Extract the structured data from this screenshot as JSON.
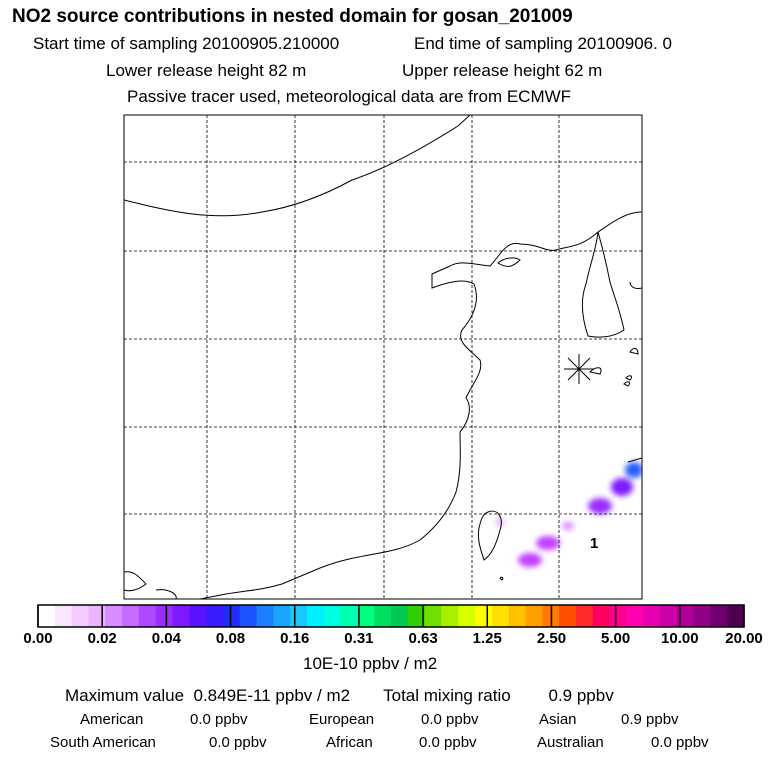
{
  "header": {
    "title": "NO2 source contributions in nested domain for gosan_201009",
    "start_time": "Start time of sampling 20100905.210000",
    "end_time": "End time of sampling 20100906.     0",
    "lower_height": "Lower release height   82 m",
    "upper_height": "Upper release height   62 m",
    "tracer_info": "Passive tracer used, meteorological data are from ECMWF"
  },
  "map": {
    "receptor_label": "1",
    "colors": {
      "coastline": "#000000",
      "grid": "#000000",
      "plume_magenta": "#c040ff",
      "plume_violet": "#8a2be2",
      "plume_blue": "#2a5cff"
    }
  },
  "colorbar": {
    "ticks": [
      "0.00",
      "0.02",
      "0.04",
      "0.08",
      "0.16",
      "0.31",
      "0.63",
      "1.25",
      "2.50",
      "5.00",
      "10.00",
      "20.00"
    ],
    "colors": [
      "#ffffff",
      "#fbe6ff",
      "#f4ccff",
      "#eab3ff",
      "#d98cff",
      "#c56bff",
      "#b04aff",
      "#9a2eff",
      "#7d1aff",
      "#5a12ff",
      "#3a1aff",
      "#1f2eff",
      "#1a55ff",
      "#1a80ff",
      "#1aa6ff",
      "#18c8ff",
      "#00f0ff",
      "#00ffe0",
      "#00ffb0",
      "#00ff80",
      "#00e060",
      "#00c850",
      "#30d000",
      "#70e000",
      "#a8f000",
      "#d8ff00",
      "#ffff00",
      "#ffe000",
      "#ffc000",
      "#ffa000",
      "#ff7a00",
      "#ff5000",
      "#ff2a2a",
      "#ff0060",
      "#ff0090",
      "#ff00b0",
      "#e800b0",
      "#cc00a8",
      "#b0009a",
      "#900088",
      "#700070",
      "#500050"
    ],
    "units": "10E-10 ppbv / m2"
  },
  "summary": {
    "max_label": "Maximum value",
    "max_value": "0.849E-11 ppbv / m2",
    "total_label": "Total mixing ratio",
    "total_value": "0.9 ppbv",
    "regions": [
      {
        "name": "American",
        "value": "0.0 ppbv"
      },
      {
        "name": "European",
        "value": "0.0 ppbv"
      },
      {
        "name": "Asian",
        "value": "0.9 ppbv"
      },
      {
        "name": "South American",
        "value": "0.0 ppbv"
      },
      {
        "name": "African",
        "value": "0.0 ppbv"
      },
      {
        "name": "Australian",
        "value": "0.0 ppbv"
      }
    ]
  }
}
